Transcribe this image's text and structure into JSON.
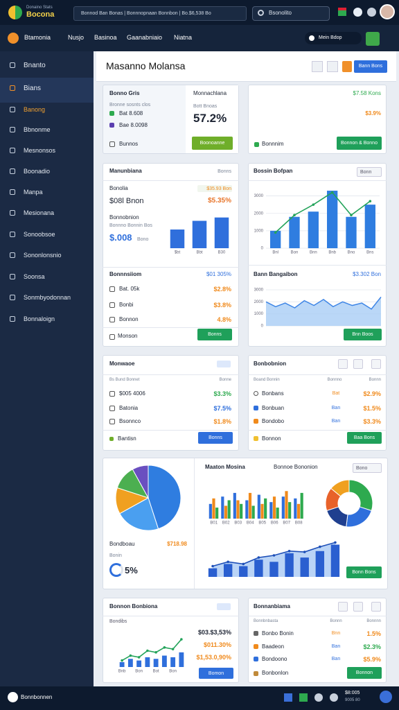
{
  "topbar": {
    "logo_sub": "Donaino Stats",
    "logo_title": "Bocona",
    "address": "Bonnod Ban Bonas | Bonnnopnaan Bonnbon | Bo.$6,538 Bo",
    "search": "Bsonolito"
  },
  "nav": {
    "items": [
      "Btamonia",
      "Nusjo",
      "Basinoa",
      "Gaanabniaio",
      "Niatna"
    ],
    "pill": "Mein Bdop"
  },
  "sidebar": {
    "items": [
      "Bnanto",
      "Bians",
      "Banong",
      "Bbnonme",
      "Mesnonsos",
      "Boonadio",
      "Manpa",
      "Mesionana",
      "Sonoobsoe",
      "Sononlonsnio",
      "Soonsa",
      "Sonmbyodonnan",
      "Bonnaloign"
    ]
  },
  "header": {
    "title": "Masanno Molansa",
    "button": "Bann Bons"
  },
  "summary": {
    "title": "Bonno Gris",
    "subtitle": "Bronne sosnts clos",
    "legend": [
      "Bat 8.608",
      "Bae 8.0098"
    ],
    "footer": "Bunnos",
    "metric_label": "Monnachlana",
    "metric_sub": "Bott Bnoas",
    "metric_value": "57.2%",
    "button": "Boonoanne"
  },
  "summary2": {
    "value1": "$7.58 Kons",
    "value2": "$3.9%",
    "footer": "Bonnnim",
    "button": "Bonnon & Bonno"
  },
  "revenue": {
    "title": "Manunbiana",
    "tag": "Bonns",
    "label1": "Bonolia",
    "chip": "$35.93 Bon",
    "big1": "$08l Bnon",
    "pct1": "$5.35%",
    "label2": "Bonnobnion",
    "sub2": "Bonnno Bonnin Bos",
    "big2": "$.008",
    "unit2": "Bono",
    "chart": {
      "type": "bar",
      "categories": [
        "$bt",
        "Bbt",
        "B30"
      ],
      "values": [
        28,
        41,
        46
      ],
      "ylim": [
        0,
        55
      ],
      "color": "#2f6fdc"
    },
    "section": "Bonnnsiiom",
    "section_value": "$01 305%",
    "rows": [
      [
        "Bat. 05k",
        "$2.8%"
      ],
      [
        "Bonbi",
        "$3.8%"
      ],
      [
        "Bonnon",
        "4.8%"
      ]
    ],
    "footer": "Monson",
    "button": "Bonns"
  },
  "trend": {
    "title": "Bossin Bofpan",
    "dropdown": "Bonn",
    "chart": {
      "type": "combo",
      "categories": [
        "Bnl",
        "Bon",
        "Bnn",
        "Bnb",
        "Bno",
        "Bns"
      ],
      "bars": [
        1000,
        1800,
        2100,
        3300,
        1800,
        2500
      ],
      "line": [
        900,
        1900,
        2500,
        3200,
        1900,
        2700
      ],
      "bar_color": "#2f7de0",
      "line_color": "#23a35a",
      "ylim": [
        0,
        3500
      ],
      "yticks": [
        0,
        1000,
        2000,
        3000
      ],
      "grid": true
    },
    "section": "Bann Bangaibon",
    "section_value": "$3.302 Bon",
    "area": {
      "type": "area",
      "values": [
        2000,
        1600,
        1900,
        1500,
        2100,
        1700,
        2200,
        1600,
        2000,
        1700,
        1900,
        1400,
        2400
      ],
      "ylim": [
        0,
        3000
      ],
      "yticks": [
        0,
        1000,
        2000,
        3000
      ],
      "color": "#3f86e6"
    },
    "button": "Bnn Boos"
  },
  "orders": {
    "title": "Monwaoe",
    "head": [
      "Bs Bund Bonnet",
      "Bonne"
    ],
    "rows": [
      [
        "$005 4006",
        "$3.3%"
      ],
      [
        "Batonia",
        "$7.5%"
      ],
      [
        "Bsonnco",
        "$1.8%"
      ]
    ],
    "footer": "Bantisn",
    "button": "Bonns"
  },
  "products": {
    "title": "Bonbobnion",
    "head": [
      "Boand Bonnin",
      "Bonnno",
      "Bonnn"
    ],
    "rows": [
      [
        "Bonbans",
        "Bat",
        "$2.9%"
      ],
      [
        "Bonbuan",
        "Ban",
        "$1.5%"
      ],
      [
        "Bondobo",
        "Ban",
        "$3.3%"
      ]
    ],
    "footer": "Bonnon",
    "button": "Baa Bons"
  },
  "overview": {
    "pie": {
      "type": "pie",
      "values": [
        45,
        22,
        13,
        12,
        8
      ],
      "colors": [
        "#2f7de0",
        "#4a9ff0",
        "#f0a020",
        "#4caf50",
        "#6a4fc0"
      ]
    },
    "label": "Bondboau",
    "value": "$718.98",
    "sub": "Bonin",
    "ring_label": "5%",
    "title": "Maaton Mosina",
    "subtitle": "Bonnoe Bononion",
    "dropdown": "Bono",
    "grouped": {
      "type": "bar",
      "categories": [
        "B01",
        "B02",
        "B03",
        "B04",
        "B05",
        "B06",
        "B07",
        "B08"
      ],
      "ylim": [
        0,
        100
      ],
      "series": [
        {
          "color": "#2f6fdc",
          "values": [
            40,
            60,
            70,
            50,
            65,
            45,
            60,
            55
          ]
        },
        {
          "color": "#f08a1c",
          "values": [
            55,
            35,
            50,
            70,
            40,
            60,
            75,
            40
          ]
        },
        {
          "color": "#2eaa4f",
          "values": [
            30,
            50,
            40,
            35,
            55,
            30,
            45,
            70
          ]
        }
      ]
    },
    "donut": {
      "type": "pie",
      "values": [
        30,
        22,
        18,
        16,
        14
      ],
      "colors": [
        "#2eaa4f",
        "#2f6fdc",
        "#1f3f8f",
        "#e8622a",
        "#f0a020"
      ]
    },
    "combo": {
      "type": "combo",
      "bars": [
        20,
        30,
        25,
        40,
        35,
        55,
        45,
        60,
        75
      ],
      "line": [
        25,
        35,
        30,
        45,
        50,
        60,
        58,
        70,
        80
      ],
      "ylim": [
        0,
        100
      ],
      "bar_color": "#2a5fd0",
      "line_color": "#1d4fb8"
    },
    "button": "Bonn Bons"
  },
  "sales": {
    "title": "Bonnon Bonbiona",
    "head": "Bondibs",
    "values": [
      "$03.$3,53%",
      "$011.30%",
      "$1,53.0,90%"
    ],
    "chart": {
      "type": "combo",
      "categories": [
        "Bnb",
        null,
        "Bon",
        null,
        "Bot",
        null,
        "Bon",
        null
      ],
      "line": [
        20,
        35,
        30,
        50,
        45,
        60,
        55,
        85
      ],
      "bars": [
        15,
        25,
        20,
        30,
        25,
        35,
        30,
        45
      ],
      "ylim": [
        0,
        100
      ],
      "bar_color": "#2f6fdc",
      "line_color": "#23a35a"
    },
    "button": "Bomon"
  },
  "team": {
    "title": "Bonnanbiama",
    "head": [
      "Bonnbnbasta",
      "Bonnn",
      "Bonnnn"
    ],
    "rows": [
      [
        "Bonbo Bonin",
        "Bnn",
        "1.5%"
      ],
      [
        "Baadeon",
        "Ban",
        "$2.3%"
      ],
      [
        "Bondoono",
        "Ban",
        "$5.9%"
      ]
    ],
    "footer": "Bonbonlon",
    "button": "Bonnon"
  },
  "bottombar": {
    "label": "Bonnbonnen",
    "time": "$8:005",
    "date": "9005 80"
  }
}
